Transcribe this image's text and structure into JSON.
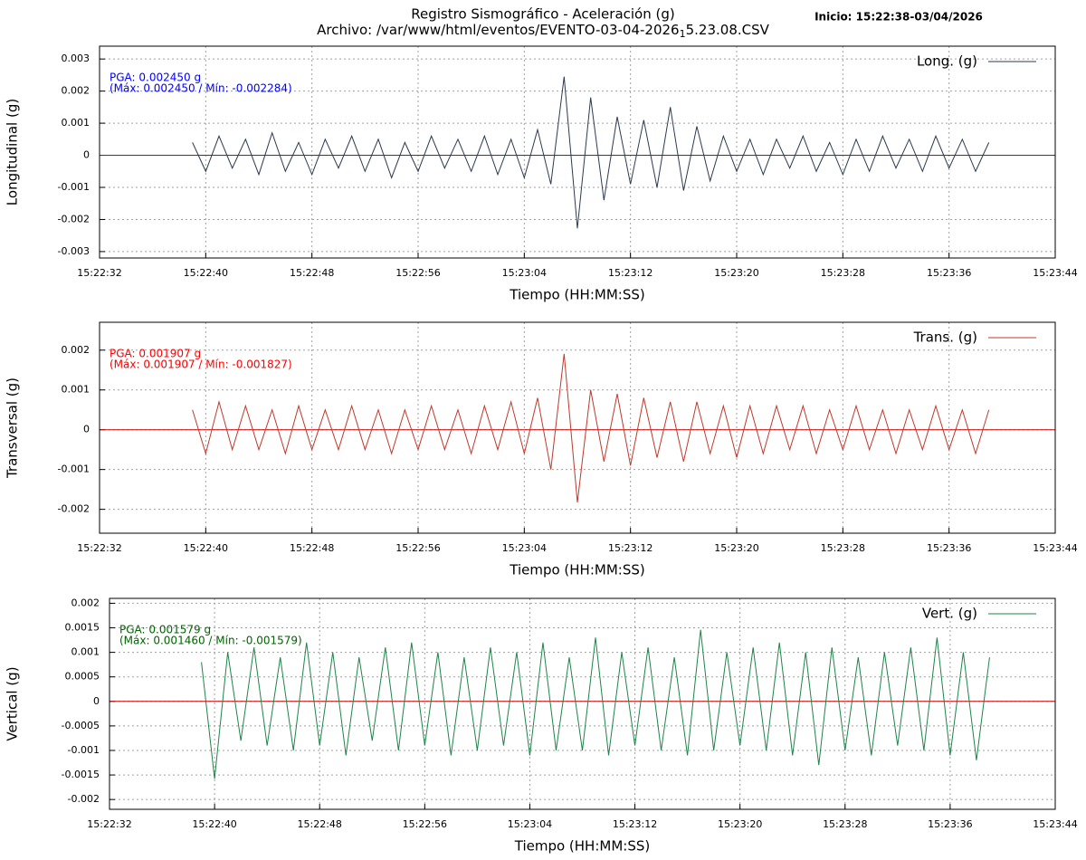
{
  "header": {
    "title": "Registro Sismográfico - Aceleración (g)",
    "subtitle": "Archivo: /var/www/html/eventos/EVENTO-03-04-2026",
    "subtitle_subscript": "1",
    "subtitle_end": "5.23.08.CSV",
    "start": "Inicio: 15:22:38-03/04/2026"
  },
  "chart_data": [
    {
      "type": "line",
      "x_label": "Tiempo (HH:MM:SS)",
      "y_label": "Longitudinal (g)",
      "grid": true,
      "legend": "top-right",
      "annotations": [
        "PGA: 0.002450 g",
        "(Máx: 0.002450 / Mín: -0.002284)"
      ],
      "annotation_color": "#0000ff",
      "xlim": [
        "15:22:32",
        "15:23:44"
      ],
      "xticks": [
        "15:22:32",
        "15:22:40",
        "15:22:48",
        "15:22:56",
        "15:23:04",
        "15:23:12",
        "15:23:20",
        "15:23:28",
        "15:23:36",
        "15:23:44"
      ],
      "ylim": [
        -0.0032,
        0.0034
      ],
      "yticks": [
        -0.003,
        -0.002,
        -0.001,
        0,
        0.001,
        0.002,
        0.003
      ],
      "x": [
        "15:22:39",
        "15:22:40",
        "15:22:41",
        "15:22:42",
        "15:22:43",
        "15:22:44",
        "15:22:45",
        "15:22:46",
        "15:22:47",
        "15:22:48",
        "15:22:49",
        "15:22:50",
        "15:22:51",
        "15:22:52",
        "15:22:53",
        "15:22:54",
        "15:22:55",
        "15:22:56",
        "15:22:57",
        "15:22:58",
        "15:22:59",
        "15:23:00",
        "15:23:01",
        "15:23:02",
        "15:23:03",
        "15:23:04",
        "15:23:05",
        "15:23:06",
        "15:23:07",
        "15:23:08",
        "15:23:09",
        "15:23:10",
        "15:23:11",
        "15:23:12",
        "15:23:13",
        "15:23:14",
        "15:23:15",
        "15:23:16",
        "15:23:17",
        "15:23:18",
        "15:23:19",
        "15:23:20",
        "15:23:21",
        "15:23:22",
        "15:23:23",
        "15:23:24",
        "15:23:25",
        "15:23:26",
        "15:23:27",
        "15:23:28",
        "15:23:29",
        "15:23:30",
        "15:23:31",
        "15:23:32",
        "15:23:33",
        "15:23:34",
        "15:23:35",
        "15:23:36",
        "15:23:37",
        "15:23:38",
        "15:23:39"
      ],
      "series": [
        {
          "name": "Long. (g)",
          "color": "#2b3a4e",
          "values": [
            0.0004,
            -0.0005,
            0.0006,
            -0.0004,
            0.0005,
            -0.0006,
            0.0007,
            -0.0005,
            0.0004,
            -0.0006,
            0.0005,
            -0.0004,
            0.0006,
            -0.0005,
            0.0005,
            -0.0007,
            0.0004,
            -0.0005,
            0.0006,
            -0.0004,
            0.0005,
            -0.0005,
            0.0006,
            -0.0006,
            0.0005,
            -0.0007,
            0.0008,
            -0.0009,
            0.00245,
            -0.00228,
            0.0018,
            -0.0014,
            0.0012,
            -0.0009,
            0.0011,
            -0.001,
            0.0015,
            -0.0011,
            0.0009,
            -0.0008,
            0.0006,
            -0.0005,
            0.0005,
            -0.0006,
            0.0005,
            -0.0004,
            0.0006,
            -0.0005,
            0.0004,
            -0.0006,
            0.0005,
            -0.0005,
            0.0006,
            -0.0004,
            0.0005,
            -0.0005,
            0.0006,
            -0.0004,
            0.0005,
            -0.0005,
            0.0004
          ]
        }
      ]
    },
    {
      "type": "line",
      "x_label": "Tiempo (HH:MM:SS)",
      "y_label": "Transversal (g)",
      "grid": true,
      "legend": "top-right",
      "annotations": [
        "PGA: 0.001907 g",
        "(Máx: 0.001907 / Mín: -0.001827)"
      ],
      "annotation_color": "#ff0000",
      "xlim": [
        "15:22:32",
        "15:23:44"
      ],
      "xticks": [
        "15:22:32",
        "15:22:40",
        "15:22:48",
        "15:22:56",
        "15:23:04",
        "15:23:12",
        "15:23:20",
        "15:23:28",
        "15:23:36",
        "15:23:44"
      ],
      "ylim": [
        -0.0026,
        0.0027
      ],
      "yticks": [
        -0.002,
        -0.001,
        0,
        0.001,
        0.002
      ],
      "x": [
        "15:22:39",
        "15:22:40",
        "15:22:41",
        "15:22:42",
        "15:22:43",
        "15:22:44",
        "15:22:45",
        "15:22:46",
        "15:22:47",
        "15:22:48",
        "15:22:49",
        "15:22:50",
        "15:22:51",
        "15:22:52",
        "15:22:53",
        "15:22:54",
        "15:22:55",
        "15:22:56",
        "15:22:57",
        "15:22:58",
        "15:22:59",
        "15:23:00",
        "15:23:01",
        "15:23:02",
        "15:23:03",
        "15:23:04",
        "15:23:05",
        "15:23:06",
        "15:23:07",
        "15:23:08",
        "15:23:09",
        "15:23:10",
        "15:23:11",
        "15:23:12",
        "15:23:13",
        "15:23:14",
        "15:23:15",
        "15:23:16",
        "15:23:17",
        "15:23:18",
        "15:23:19",
        "15:23:20",
        "15:23:21",
        "15:23:22",
        "15:23:23",
        "15:23:24",
        "15:23:25",
        "15:23:26",
        "15:23:27",
        "15:23:28",
        "15:23:29",
        "15:23:30",
        "15:23:31",
        "15:23:32",
        "15:23:33",
        "15:23:34",
        "15:23:35",
        "15:23:36",
        "15:23:37",
        "15:23:38",
        "15:23:39"
      ],
      "series": [
        {
          "name": "Trans. (g)",
          "color": "#c0392b",
          "values": [
            0.0005,
            -0.0006,
            0.0007,
            -0.0005,
            0.0006,
            -0.0005,
            0.0005,
            -0.0006,
            0.0006,
            -0.0005,
            0.0005,
            -0.0005,
            0.0006,
            -0.0005,
            0.0005,
            -0.0006,
            0.0005,
            -0.0005,
            0.0006,
            -0.0005,
            0.0005,
            -0.0006,
            0.0006,
            -0.0005,
            0.0007,
            -0.0006,
            0.0008,
            -0.001,
            0.001907,
            -0.001827,
            0.001,
            -0.0008,
            0.0009,
            -0.0009,
            0.0008,
            -0.0007,
            0.0007,
            -0.0008,
            0.0007,
            -0.0006,
            0.0006,
            -0.0007,
            0.0006,
            -0.0006,
            0.0006,
            -0.0005,
            0.0006,
            -0.0006,
            0.0005,
            -0.0005,
            0.0006,
            -0.0005,
            0.0005,
            -0.0006,
            0.0005,
            -0.0005,
            0.0006,
            -0.0005,
            0.0005,
            -0.0006,
            0.0005
          ]
        }
      ]
    },
    {
      "type": "line",
      "x_label": "Tiempo (HH:MM:SS)",
      "y_label": "Vertical (g)",
      "grid": true,
      "legend": "top-right",
      "annotations": [
        "PGA: 0.001579 g",
        "(Máx: 0.001460 / Mín: -0.001579)"
      ],
      "annotation_color": "#006400",
      "xlim": [
        "15:22:32",
        "15:23:44"
      ],
      "xticks": [
        "15:22:32",
        "15:22:40",
        "15:22:48",
        "15:22:56",
        "15:23:04",
        "15:23:12",
        "15:23:20",
        "15:23:28",
        "15:23:36",
        "15:23:44"
      ],
      "ylim": [
        -0.0022,
        0.0021
      ],
      "yticks": [
        -0.002,
        -0.0015,
        -0.001,
        -0.0005,
        0,
        0.0005,
        0.001,
        0.0015,
        0.002
      ],
      "x": [
        "15:22:39",
        "15:22:40",
        "15:22:41",
        "15:22:42",
        "15:22:43",
        "15:22:44",
        "15:22:45",
        "15:22:46",
        "15:22:47",
        "15:22:48",
        "15:22:49",
        "15:22:50",
        "15:22:51",
        "15:22:52",
        "15:22:53",
        "15:22:54",
        "15:22:55",
        "15:22:56",
        "15:22:57",
        "15:22:58",
        "15:22:59",
        "15:23:00",
        "15:23:01",
        "15:23:02",
        "15:23:03",
        "15:23:04",
        "15:23:05",
        "15:23:06",
        "15:23:07",
        "15:23:08",
        "15:23:09",
        "15:23:10",
        "15:23:11",
        "15:23:12",
        "15:23:13",
        "15:23:14",
        "15:23:15",
        "15:23:16",
        "15:23:17",
        "15:23:18",
        "15:23:19",
        "15:23:20",
        "15:23:21",
        "15:23:22",
        "15:23:23",
        "15:23:24",
        "15:23:25",
        "15:23:26",
        "15:23:27",
        "15:23:28",
        "15:23:29",
        "15:23:30",
        "15:23:31",
        "15:23:32",
        "15:23:33",
        "15:23:34",
        "15:23:35",
        "15:23:36",
        "15:23:37",
        "15:23:38",
        "15:23:39"
      ],
      "series": [
        {
          "name": "Vert. (g)",
          "color": "#1e8449",
          "values": [
            0.0008,
            -0.001579,
            0.001,
            -0.0008,
            0.0011,
            -0.0009,
            0.0009,
            -0.001,
            0.0012,
            -0.0009,
            0.001,
            -0.0011,
            0.0009,
            -0.0008,
            0.0011,
            -0.001,
            0.0012,
            -0.0009,
            0.001,
            -0.0011,
            0.0009,
            -0.001,
            0.0011,
            -0.0009,
            0.001,
            -0.0011,
            0.0012,
            -0.001,
            0.0009,
            -0.001,
            0.0013,
            -0.0011,
            0.001,
            -0.0009,
            0.0011,
            -0.001,
            0.0009,
            -0.0011,
            0.00146,
            -0.001,
            0.001,
            -0.0009,
            0.0011,
            -0.001,
            0.0012,
            -0.0011,
            0.001,
            -0.0013,
            0.0011,
            -0.001,
            0.0009,
            -0.0011,
            0.001,
            -0.0009,
            0.0011,
            -0.001,
            0.0013,
            -0.0011,
            0.001,
            -0.0012,
            0.0009
          ]
        }
      ]
    }
  ]
}
